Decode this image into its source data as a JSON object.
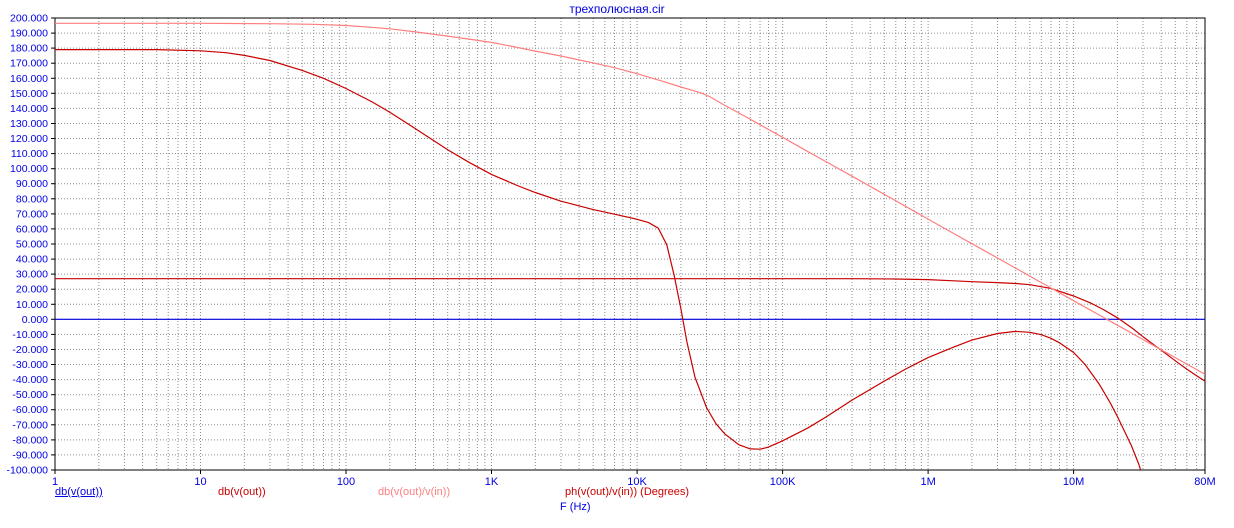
{
  "window": {
    "title": "трехполюсная.cir"
  },
  "chart_data": {
    "type": "line",
    "title": "трехполюсная.cir",
    "xlabel": "F (Hz)",
    "x_scale": "log",
    "xlim": [
      1,
      80000000
    ],
    "ylim": [
      -100,
      200
    ],
    "y_tick_step": 10,
    "grid": "dotted",
    "colors": {
      "axis_text": "#0000e0",
      "grid": "#8c8c8c",
      "frame": "#000000",
      "background": "#ffffff"
    },
    "y_tick_labels": [
      "200.000",
      "190.000",
      "180.000",
      "170.000",
      "160.000",
      "150.000",
      "140.000",
      "130.000",
      "120.000",
      "110.000",
      "100.000",
      "90.000",
      "80.000",
      "70.000",
      "60.000",
      "50.000",
      "40.000",
      "30.000",
      "20.000",
      "10.000",
      "0.000",
      "-10.000",
      "-20.000",
      "-30.000",
      "-40.000",
      "-50.000",
      "-60.000",
      "-70.000",
      "-80.000",
      "-90.000",
      "-100.000"
    ],
    "x_ticks": [
      {
        "f": 1,
        "label": "1"
      },
      {
        "f": 10,
        "label": "10"
      },
      {
        "f": 100,
        "label": "100"
      },
      {
        "f": 1000,
        "label": "1K"
      },
      {
        "f": 10000,
        "label": "10K"
      },
      {
        "f": 100000,
        "label": "100K"
      },
      {
        "f": 1000000,
        "label": "1M"
      },
      {
        "f": 10000000,
        "label": "10M"
      },
      {
        "f": 80000000,
        "label": "80M"
      }
    ],
    "legend": [
      {
        "label": "db(v(out))",
        "color": "#0000e0",
        "underline": true
      },
      {
        "label": "db(v(out))",
        "color": "#c80000",
        "underline": false
      },
      {
        "label": "db(v(out)/v(in))",
        "color": "#ff7f7f",
        "underline": false
      },
      {
        "label": "ph(v(out)/v(in)) (Degrees)",
        "color": "#c80000",
        "underline": false
      }
    ],
    "series": [
      {
        "name": "db(v(out))",
        "color": "#0000e0",
        "points": [
          [
            1,
            0
          ],
          [
            80000000,
            0
          ]
        ]
      },
      {
        "name": "db(v(out))",
        "color": "#c80000",
        "points": [
          [
            1,
            27
          ],
          [
            10,
            27
          ],
          [
            100,
            27
          ],
          [
            1000,
            27
          ],
          [
            10000,
            27
          ],
          [
            100000,
            27
          ],
          [
            300000,
            27
          ],
          [
            600000,
            26.8
          ],
          [
            1000000,
            26.4
          ],
          [
            1500000,
            25.6
          ],
          [
            2000000,
            25
          ],
          [
            3000000,
            24.4
          ],
          [
            4000000,
            23.8
          ],
          [
            5000000,
            23
          ],
          [
            7000000,
            20.5
          ],
          [
            10000000,
            15.5
          ],
          [
            13000000,
            11
          ],
          [
            16000000,
            6.5
          ],
          [
            20000000,
            1
          ],
          [
            25000000,
            -5.5
          ],
          [
            30000000,
            -11.5
          ],
          [
            40000000,
            -20.5
          ],
          [
            50000000,
            -27.5
          ],
          [
            60000000,
            -33
          ],
          [
            70000000,
            -37.5
          ],
          [
            80000000,
            -41
          ]
        ]
      },
      {
        "name": "db(v(out)/v(in))",
        "color": "#ff7f7f",
        "points": [
          [
            1,
            196.5
          ],
          [
            10,
            196.5
          ],
          [
            30,
            196.2
          ],
          [
            60,
            195.8
          ],
          [
            100,
            195
          ],
          [
            150,
            193.8
          ],
          [
            200,
            192.8
          ],
          [
            300,
            190.8
          ],
          [
            500,
            188
          ],
          [
            700,
            186
          ],
          [
            1000,
            183.8
          ],
          [
            1500,
            180.5
          ],
          [
            2000,
            178
          ],
          [
            3000,
            174.8
          ],
          [
            5000,
            170.2
          ],
          [
            7000,
            167
          ],
          [
            10000,
            163
          ],
          [
            15000,
            158
          ],
          [
            20000,
            154.2
          ],
          [
            25000,
            151.5
          ],
          [
            28000,
            150
          ],
          [
            32000,
            147.5
          ],
          [
            40000,
            142
          ],
          [
            50000,
            137
          ],
          [
            70000,
            129.2
          ],
          [
            100000,
            120.8
          ],
          [
            150000,
            111.2
          ],
          [
            200000,
            104.5
          ],
          [
            300000,
            95
          ],
          [
            500000,
            83
          ],
          [
            700000,
            75
          ],
          [
            1000000,
            66.5
          ],
          [
            1500000,
            57
          ],
          [
            2000000,
            50.2
          ],
          [
            3000000,
            40.7
          ],
          [
            5000000,
            28.7
          ],
          [
            7000000,
            20.8
          ],
          [
            10000000,
            12.4
          ],
          [
            15000000,
            2.9
          ],
          [
            20000000,
            -3.9
          ],
          [
            30000000,
            -13.4
          ],
          [
            40000000,
            -20.2
          ],
          [
            50000000,
            -25.4
          ],
          [
            60000000,
            -29.7
          ],
          [
            70000000,
            -33.3
          ],
          [
            80000000,
            -36.5
          ]
        ]
      },
      {
        "name": "ph(v(out)/v(in)) (Degrees)",
        "color": "#c80000",
        "points": [
          [
            1,
            179
          ],
          [
            5,
            179
          ],
          [
            10,
            178.2
          ],
          [
            15,
            177
          ],
          [
            20,
            175.2
          ],
          [
            30,
            171.8
          ],
          [
            50,
            165.2
          ],
          [
            70,
            160
          ],
          [
            100,
            153.2
          ],
          [
            150,
            144.5
          ],
          [
            200,
            137.5
          ],
          [
            300,
            126.5
          ],
          [
            500,
            112.5
          ],
          [
            700,
            104.2
          ],
          [
            1000,
            96.2
          ],
          [
            1500,
            88.8
          ],
          [
            2000,
            84.2
          ],
          [
            3000,
            78.4
          ],
          [
            5000,
            72.8
          ],
          [
            7000,
            69.8
          ],
          [
            10000,
            66.4
          ],
          [
            12000,
            64.2
          ],
          [
            14000,
            60.5
          ],
          [
            16000,
            49.5
          ],
          [
            18000,
            29
          ],
          [
            20000,
            7
          ],
          [
            22000,
            -15
          ],
          [
            25000,
            -38.5
          ],
          [
            30000,
            -58.5
          ],
          [
            35000,
            -69.5
          ],
          [
            40000,
            -76
          ],
          [
            50000,
            -83.2
          ],
          [
            60000,
            -86
          ],
          [
            70000,
            -86.2
          ],
          [
            80000,
            -84.8
          ],
          [
            100000,
            -80.6
          ],
          [
            150000,
            -72
          ],
          [
            200000,
            -64.6
          ],
          [
            300000,
            -53.6
          ],
          [
            500000,
            -41
          ],
          [
            700000,
            -33
          ],
          [
            1000000,
            -25.4
          ],
          [
            1500000,
            -18.4
          ],
          [
            2000000,
            -13.8
          ],
          [
            3000000,
            -9.4
          ],
          [
            4000000,
            -8
          ],
          [
            5000000,
            -8.6
          ],
          [
            6000000,
            -10.2
          ],
          [
            7000000,
            -12.6
          ],
          [
            8000000,
            -15.6
          ],
          [
            10000000,
            -22
          ],
          [
            12000000,
            -30
          ],
          [
            15000000,
            -43
          ],
          [
            18000000,
            -56
          ],
          [
            20000000,
            -64.5
          ],
          [
            25000000,
            -84
          ],
          [
            28000000,
            -96
          ],
          [
            30000000,
            -105
          ]
        ]
      }
    ]
  }
}
